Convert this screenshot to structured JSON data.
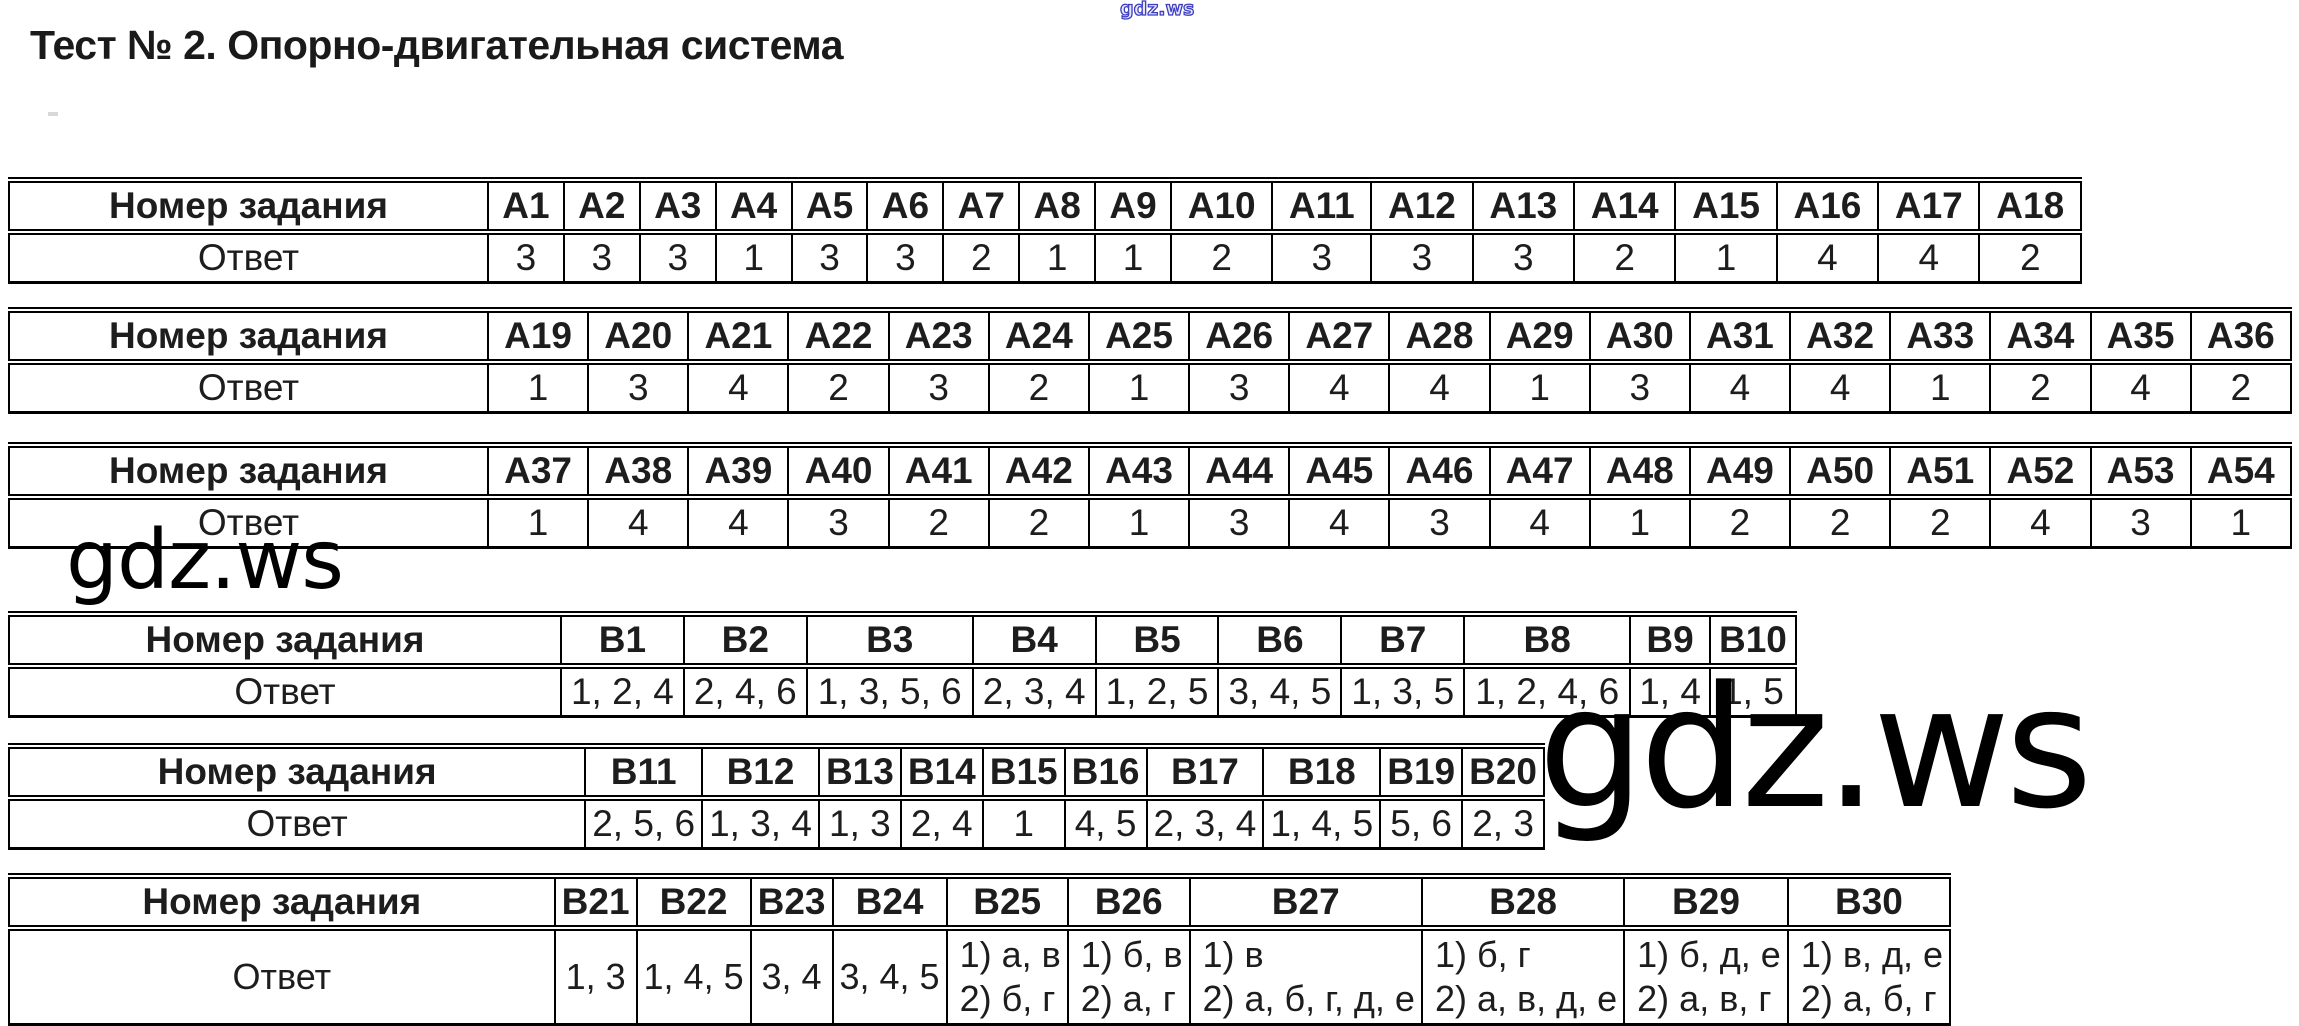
{
  "title": "Тест № 2. Опорно-двигательная система",
  "watermarks": {
    "top": "gdz.ws",
    "left": "gdz.ws",
    "right": "gdz.ws",
    "accent_color": "#3d3dc0"
  },
  "row_labels": {
    "task": "Номер задания",
    "answer": "Ответ"
  },
  "tables": [
    {
      "headers": [
        "A1",
        "A2",
        "A3",
        "A4",
        "A5",
        "A6",
        "A7",
        "A8",
        "A9",
        "A10",
        "A11",
        "A12",
        "A13",
        "A14",
        "A15",
        "A16",
        "A17",
        "A18"
      ],
      "answers": [
        "3",
        "3",
        "3",
        "1",
        "3",
        "3",
        "2",
        "1",
        "1",
        "2",
        "3",
        "3",
        "3",
        "2",
        "1",
        "4",
        "4",
        "2"
      ]
    },
    {
      "headers": [
        "A19",
        "A20",
        "A21",
        "A22",
        "A23",
        "A24",
        "A25",
        "A26",
        "A27",
        "A28",
        "A29",
        "A30",
        "A31",
        "A32",
        "A33",
        "A34",
        "A35",
        "A36"
      ],
      "answers": [
        "1",
        "3",
        "4",
        "2",
        "3",
        "2",
        "1",
        "3",
        "4",
        "4",
        "1",
        "3",
        "4",
        "4",
        "1",
        "2",
        "4",
        "2"
      ]
    },
    {
      "headers": [
        "A37",
        "A38",
        "A39",
        "A40",
        "A41",
        "A42",
        "A43",
        "A44",
        "A45",
        "A46",
        "A47",
        "A48",
        "A49",
        "A50",
        "A51",
        "A52",
        "A53",
        "A54"
      ],
      "answers": [
        "1",
        "4",
        "4",
        "3",
        "2",
        "2",
        "1",
        "3",
        "4",
        "3",
        "4",
        "1",
        "2",
        "2",
        "2",
        "4",
        "3",
        "1"
      ]
    },
    {
      "headers": [
        "B1",
        "B2",
        "B3",
        "B4",
        "B5",
        "B6",
        "B7",
        "B8",
        "B9",
        "B10"
      ],
      "answers": [
        "1, 2, 4",
        "2, 4, 6",
        "1, 3, 5, 6",
        "2, 3, 4",
        "1, 2, 5",
        "3, 4, 5",
        "1, 3, 5",
        "1, 2, 4, 6",
        "1, 4",
        "1, 5"
      ]
    },
    {
      "headers": [
        "B11",
        "B12",
        "B13",
        "B14",
        "B15",
        "B16",
        "B17",
        "B18",
        "B19",
        "B20"
      ],
      "answers": [
        "2, 5, 6",
        "1, 3, 4",
        "1, 3",
        "2, 4",
        "1",
        "4, 5",
        "2, 3, 4",
        "1, 4, 5",
        "5, 6",
        "2, 3"
      ]
    },
    {
      "headers": [
        "B21",
        "B22",
        "B23",
        "B24",
        "B25",
        "B26",
        "B27",
        "B28",
        "B29",
        "B30"
      ],
      "answers": [
        "1, 3",
        "1, 4, 5",
        "3, 4",
        "3, 4, 5",
        [
          "1) а, в",
          "2) б, г"
        ],
        [
          "1) б, в",
          "2) а, г"
        ],
        [
          "1) в",
          "2) а, б, г, д, е"
        ],
        [
          "1) б, г",
          "2) а, в, д, е"
        ],
        [
          "1) б, д, е",
          "2) а, в, г"
        ],
        [
          "1) в, д, е",
          "2) а, б, г"
        ]
      ]
    }
  ]
}
